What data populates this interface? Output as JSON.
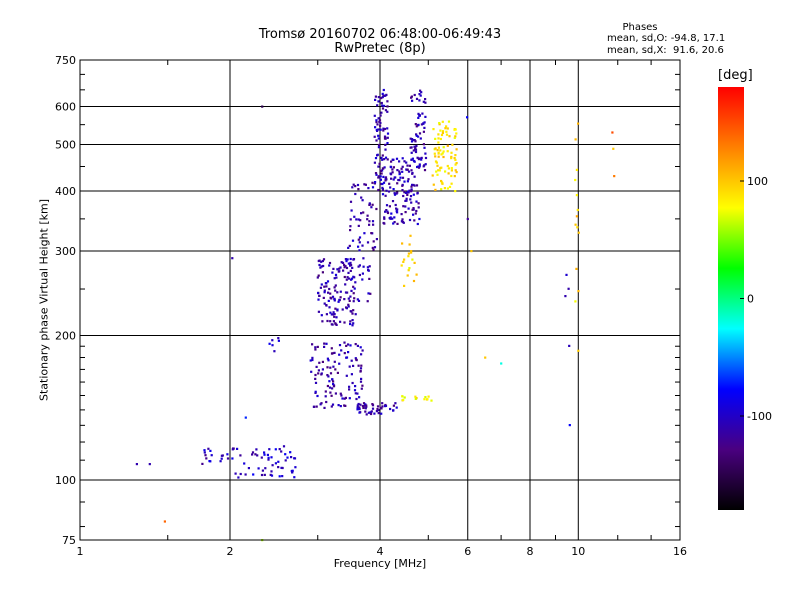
{
  "header": {
    "title": "Tromsø 20160702 06:48:00-06:49:43",
    "subtitle": "RwPretec (8p)"
  },
  "stats": {
    "heading": "Phases",
    "o_mode": "mean, sd,O: -94.8, 17.1",
    "x_mode": "mean, sd,X:  91.6, 20.6"
  },
  "colorbar": {
    "label": "[deg]",
    "tick_labels": [
      "100",
      "0",
      "-100"
    ],
    "tick_values": [
      100,
      0,
      -100
    ],
    "range": [
      -180,
      180
    ],
    "colormap": [
      "#000000",
      "#4a0080",
      "#0000ff",
      "#00ffff",
      "#00ff00",
      "#ffff00",
      "#ff8000",
      "#ff0000"
    ]
  },
  "chart_data": {
    "type": "scatter",
    "xlabel": "Frequency [MHz]",
    "ylabel": "Stationary phase Virtual Height [km]",
    "x_scale": "log",
    "y_scale": "log",
    "xlim": [
      1,
      16
    ],
    "ylim": [
      75,
      750
    ],
    "x_ticks": [
      1,
      2,
      4,
      6,
      8,
      10,
      16
    ],
    "x_tick_labels": [
      "1",
      "2",
      "4",
      "6",
      "8",
      "10",
      "16"
    ],
    "y_ticks": [
      75,
      100,
      200,
      300,
      400,
      500,
      600,
      750
    ],
    "y_tick_labels": [
      "75",
      "100",
      "200",
      "300",
      "400",
      "500",
      "600",
      "750"
    ],
    "grid": true,
    "clusters": [
      {
        "f": [
          1.75,
          2.05
        ],
        "h": [
          108,
          117
        ],
        "phase": -105,
        "n": 20
      },
      {
        "f": [
          2.05,
          2.75
        ],
        "h": [
          101,
          118
        ],
        "phase": -100,
        "n": 55
      },
      {
        "f": [
          2.4,
          2.6
        ],
        "h": [
          185,
          200
        ],
        "phase": -100,
        "n": 6
      },
      {
        "f": [
          2.9,
          3.7
        ],
        "h": [
          140,
          195
        ],
        "phase": -112,
        "n": 120
      },
      {
        "f": [
          3.6,
          4.35
        ],
        "h": [
          137,
          145
        ],
        "phase": -112,
        "n": 45
      },
      {
        "f": [
          3.0,
          3.55
        ],
        "h": [
          210,
          290
        ],
        "phase": -112,
        "n": 130
      },
      {
        "f": [
          3.4,
          3.85
        ],
        "h": [
          220,
          290
        ],
        "phase": -110,
        "n": 30
      },
      {
        "f": [
          3.45,
          3.95
        ],
        "h": [
          300,
          420
        ],
        "phase": -112,
        "n": 55
      },
      {
        "f": [
          3.9,
          4.15
        ],
        "h": [
          400,
          650
        ],
        "phase": -110,
        "n": 90
      },
      {
        "f": [
          4.05,
          4.8
        ],
        "h": [
          340,
          470
        ],
        "phase": -110,
        "n": 140
      },
      {
        "f": [
          4.6,
          4.95
        ],
        "h": [
          440,
          650
        ],
        "phase": -110,
        "n": 70
      },
      {
        "f": [
          5.1,
          5.7
        ],
        "h": [
          400,
          560
        ],
        "phase": 90,
        "n": 85
      },
      {
        "f": [
          4.35,
          4.75
        ],
        "h": [
          250,
          340
        ],
        "phase": 88,
        "n": 18
      },
      {
        "f": [
          4.4,
          5.15
        ],
        "h": [
          146,
          150
        ],
        "phase": 85,
        "n": 14
      },
      {
        "f": [
          9.85,
          10.05
        ],
        "h": [
          170,
          640
        ],
        "phase": 95,
        "n": 14
      },
      {
        "f": [
          9.4,
          9.65
        ],
        "h": [
          105,
          520
        ],
        "phase": -95,
        "n": 5
      }
    ],
    "points": [
      {
        "f": 1.3,
        "h": 108,
        "phase": -110
      },
      {
        "f": 1.38,
        "h": 108,
        "phase": -110
      },
      {
        "f": 1.48,
        "h": 82,
        "phase": 140
      },
      {
        "f": 2.02,
        "h": 290,
        "phase": -110
      },
      {
        "f": 2.15,
        "h": 135,
        "phase": -70
      },
      {
        "f": 2.32,
        "h": 600,
        "phase": -150
      },
      {
        "f": 2.32,
        "h": 75,
        "phase": 60
      },
      {
        "f": 5.98,
        "h": 570,
        "phase": -80
      },
      {
        "f": 6.0,
        "h": 350,
        "phase": -120
      },
      {
        "f": 6.1,
        "h": 300,
        "phase": 100
      },
      {
        "f": 6.5,
        "h": 180,
        "phase": 100
      },
      {
        "f": 7.0,
        "h": 175,
        "phase": -20
      },
      {
        "f": 11.7,
        "h": 530,
        "phase": 150
      },
      {
        "f": 11.75,
        "h": 490,
        "phase": 100
      },
      {
        "f": 11.8,
        "h": 430,
        "phase": 130
      }
    ]
  }
}
